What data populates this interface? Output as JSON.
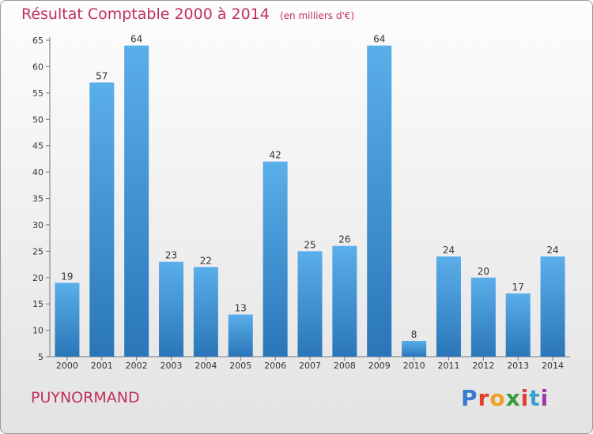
{
  "header": {
    "title": "Résultat Comptable 2000 à 2014",
    "unit": "(en milliers d'€)"
  },
  "footer": {
    "commune": "PUYNORMAND",
    "brand": "Proxiti"
  },
  "colors": {
    "title": "#c0305a",
    "bar_top": "#5aaeea",
    "bar_bottom": "#2a76b8",
    "brand": [
      "#3a7ad0",
      "#e0402a",
      "#f0a020",
      "#3a9a3a",
      "#e0402a",
      "#3aa0d0",
      "#9a3aa0"
    ]
  },
  "chart_data": {
    "type": "bar",
    "title": "Résultat Comptable 2000 à 2014",
    "ylabel": "en milliers d'€",
    "xlabel": "",
    "categories": [
      "2000",
      "2001",
      "2002",
      "2003",
      "2004",
      "2005",
      "2006",
      "2007",
      "2008",
      "2009",
      "2010",
      "2011",
      "2012",
      "2013",
      "2014"
    ],
    "values": [
      19,
      57,
      64,
      23,
      22,
      13,
      42,
      25,
      26,
      64,
      8,
      24,
      20,
      17,
      24
    ],
    "ylim": [
      5,
      65
    ],
    "yticks": [
      5,
      10,
      15,
      20,
      25,
      30,
      35,
      40,
      45,
      50,
      55,
      60,
      65
    ],
    "grid": false,
    "legend": "none"
  }
}
